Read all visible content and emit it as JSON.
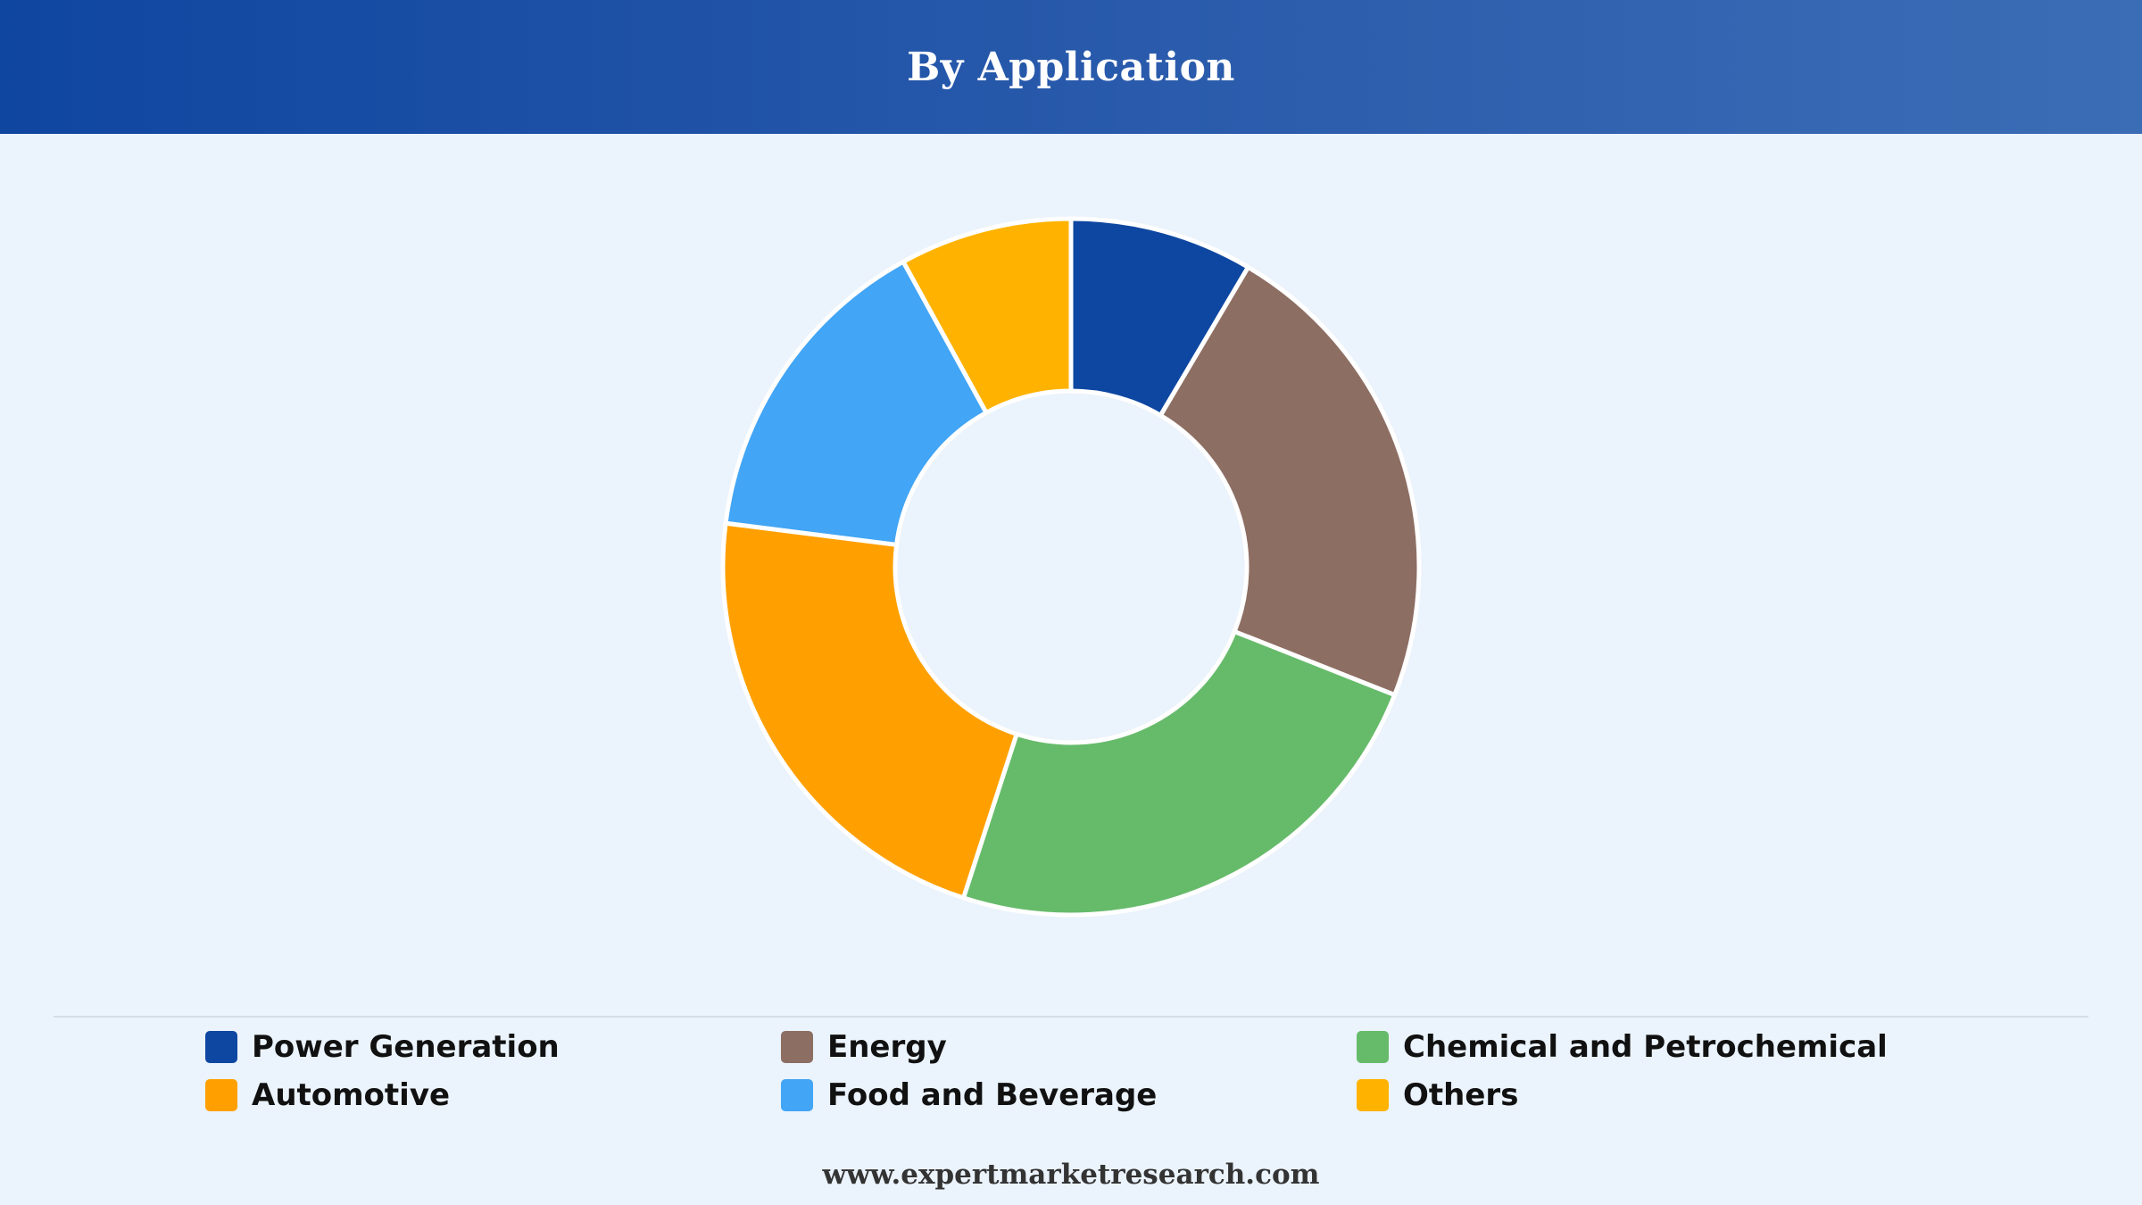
{
  "header": {
    "title": "By Application"
  },
  "chart_data": {
    "type": "pie",
    "title": "By Application",
    "donut": true,
    "legend_position": "bottom",
    "categories": [
      "Power Generation",
      "Energy",
      "Chemical and Petrochemical",
      "Automotive",
      "Food and Beverage",
      "Others"
    ],
    "values": [
      8.5,
      22.5,
      24,
      22,
      15,
      8
    ],
    "unit": "%",
    "colors": [
      "#0e47a1",
      "#8d6e63",
      "#66bb6a",
      "#ffa000",
      "#42a5f5",
      "#ffb300"
    ]
  },
  "footer": {
    "source": "www.expertmarketresearch.com"
  }
}
